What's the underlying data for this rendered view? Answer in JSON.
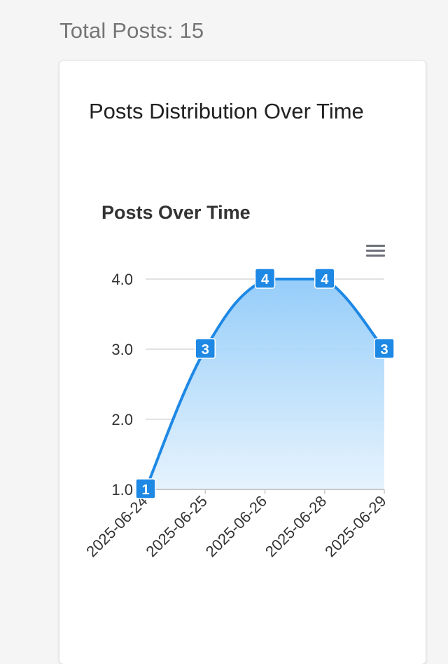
{
  "header": {
    "total_posts": "Total Posts: 15"
  },
  "card": {
    "title": "Posts Distribution Over Time"
  },
  "chart_data": {
    "type": "area",
    "title": "Posts Over Time",
    "categories": [
      "2025-06-24",
      "2025-06-25",
      "2025-06-26",
      "2025-06-28",
      "2025-06-29"
    ],
    "values": [
      1,
      3,
      4,
      4,
      3
    ],
    "y_tick_labels": [
      "1.0",
      "2.0",
      "3.0",
      "4.0"
    ],
    "ylim": [
      1,
      4
    ],
    "grid": true,
    "data_labels": true,
    "colors": {
      "line": "#1E88E5",
      "fill_top": "#90CAF9",
      "fill_bottom": "#E3F2FD",
      "label_bg": "#1E88E5",
      "label_text": "#ffffff",
      "grid": "#D0D0D0",
      "axis_text": "#333333"
    },
    "toolbar": {
      "menu_icon": "hamburger-menu-icon"
    }
  }
}
